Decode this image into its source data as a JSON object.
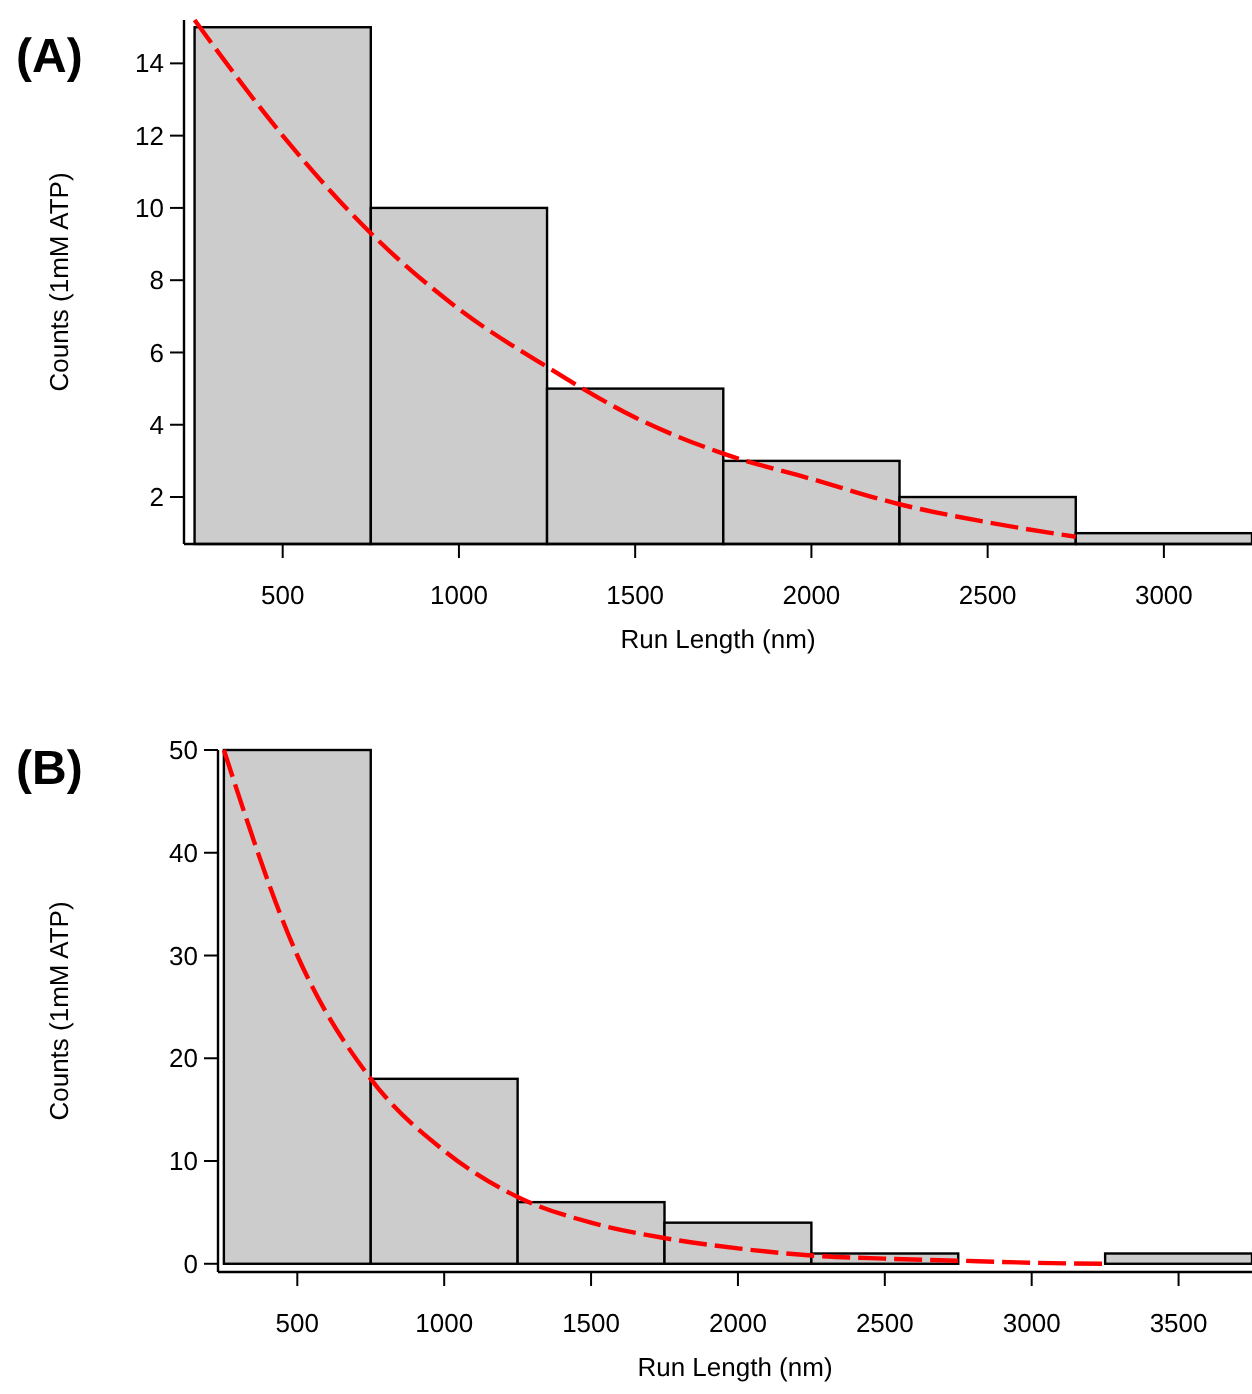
{
  "chart_data": [
    {
      "type": "histogram",
      "title": "(A)",
      "xlabel": "Run Length (nm)",
      "ylabel": "Counts (1mM ATP)",
      "bins": [
        250,
        750,
        1250,
        1750,
        2250,
        2750,
        3250
      ],
      "values": [
        15,
        10,
        5,
        3,
        2,
        1
      ],
      "color": "#cccccc",
      "xlim": [
        220,
        3250
      ],
      "xticks": [
        500,
        1000,
        1500,
        2000,
        2500,
        3000
      ],
      "ylim": [
        0.7,
        15.2
      ],
      "yticks": [
        2,
        4,
        6,
        8,
        10,
        12,
        14
      ],
      "series": [
        {
          "type": "line",
          "color": "#ff0000",
          "line_style": "dashed",
          "x": [
            250,
            500,
            750,
            1000,
            1250,
            1500,
            1750,
            2000,
            2250,
            2500,
            2750
          ],
          "values": [
            15.2,
            12,
            9.3,
            7.2,
            5.6,
            4.2,
            3.2,
            2.5,
            1.8,
            1.3,
            0.9
          ]
        }
      ]
    },
    {
      "type": "histogram",
      "title": "(B)",
      "xlabel": "Run Length (nm)",
      "ylabel": "Counts (1mM ATP)",
      "bins": [
        250,
        750,
        1250,
        1750,
        2250,
        2750,
        3250,
        3750
      ],
      "values": [
        50,
        18,
        6,
        4,
        1,
        0,
        1
      ],
      "color": "#cccccc",
      "xlim": [
        230,
        3750
      ],
      "xticks": [
        500,
        1000,
        1500,
        2000,
        2500,
        3000,
        3500
      ],
      "ylim": [
        -0.8,
        50
      ],
      "yticks": [
        0,
        10,
        20,
        30,
        40,
        50
      ],
      "series": [
        {
          "type": "line",
          "color": "#ff0000",
          "line_style": "dashed",
          "x": [
            250,
            500,
            750,
            1000,
            1250,
            1500,
            1750,
            2000,
            2250,
            2500,
            2750,
            3000,
            3250
          ],
          "values": [
            50,
            30,
            18,
            11,
            6.5,
            4,
            2.5,
            1.5,
            0.8,
            0.5,
            0.3,
            0.1,
            0
          ]
        }
      ]
    }
  ]
}
